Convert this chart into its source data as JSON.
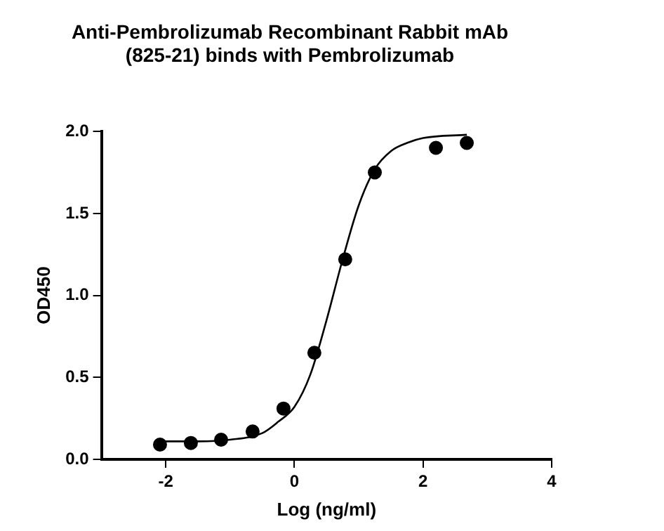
{
  "chart_data": {
    "type": "scatter",
    "title": "Anti-Pembrolizumab Recombinant Rabbit mAb\n(825-21) binds with Pembrolizumab",
    "xlabel": "Log (ng/ml)",
    "ylabel": "OD450",
    "xlim": [
      -3,
      4
    ],
    "xticks": [
      -2,
      0,
      2,
      4
    ],
    "ylim": [
      0,
      2
    ],
    "yticks": [
      {
        "value": 0,
        "label": "0.0"
      },
      {
        "value": 0.5,
        "label": "0.5"
      },
      {
        "value": 1,
        "label": "1.0"
      },
      {
        "value": 1.5,
        "label": "1.5"
      },
      {
        "value": 2,
        "label": "2.0"
      }
    ],
    "grid": false,
    "legend": false,
    "series": [
      {
        "type": "scatter",
        "color": "#000000",
        "marker": "circle",
        "x": [
          -2.09,
          -1.61,
          -1.14,
          -0.65,
          -0.17,
          0.31,
          0.79,
          1.25,
          2.2,
          2.68
        ],
        "values": [
          0.09,
          0.1,
          0.12,
          0.17,
          0.31,
          0.65,
          1.22,
          1.75,
          1.9,
          1.93
        ]
      },
      {
        "type": "line",
        "color": "#000000",
        "marker": "none",
        "line_style": "solid",
        "x": [
          -2.09,
          -1.5,
          -1,
          -0.5,
          -0.25,
          0,
          0.25,
          0.5,
          0.75,
          1,
          1.25,
          1.5,
          1.75,
          2,
          2.68
        ],
        "values": [
          0.11,
          0.11,
          0.12,
          0.16,
          0.23,
          0.32,
          0.52,
          0.85,
          1.22,
          1.55,
          1.77,
          1.88,
          1.93,
          1.96,
          1.98
        ]
      }
    ]
  }
}
